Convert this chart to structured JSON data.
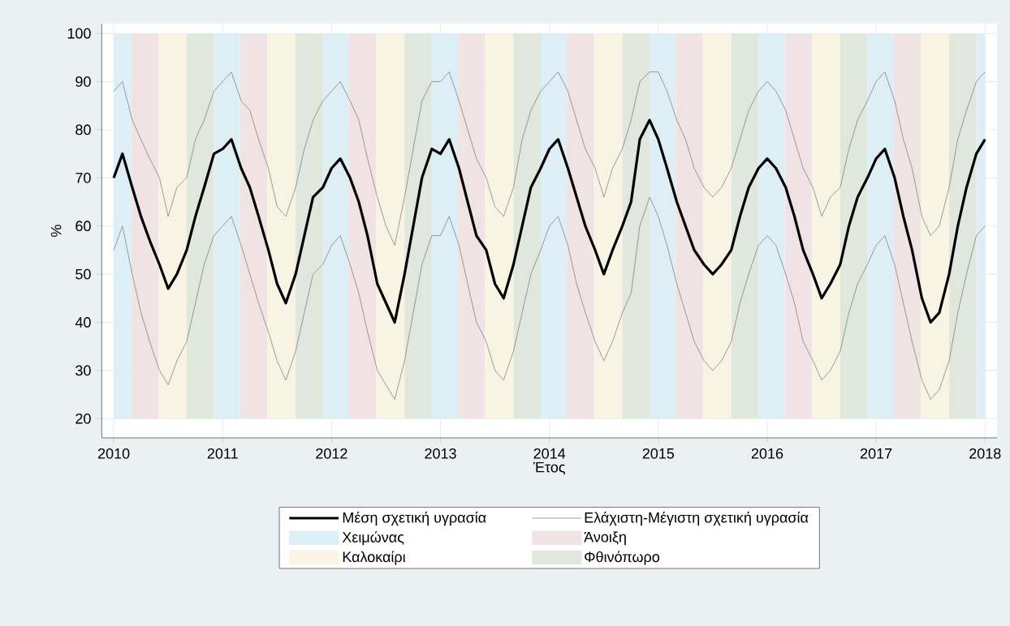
{
  "chart_data": {
    "type": "line",
    "xlabel": "Έτος",
    "ylabel": "%",
    "xlim": [
      2009.89,
      2018.11
    ],
    "ylim": [
      16,
      102
    ],
    "xticks": [
      2010,
      2011,
      2012,
      2013,
      2014,
      2015,
      2016,
      2017,
      2018
    ],
    "yticks": [
      20,
      30,
      40,
      50,
      60,
      70,
      80,
      90,
      100
    ],
    "grid": true,
    "legend": "bottom",
    "marker": "none",
    "line_style": "solid",
    "x": [
      2010,
      2010.08,
      2010.17,
      2010.25,
      2010.33,
      2010.42,
      2010.5,
      2010.58,
      2010.67,
      2010.75,
      2010.83,
      2010.92,
      2011,
      2011.08,
      2011.17,
      2011.25,
      2011.33,
      2011.42,
      2011.5,
      2011.58,
      2011.67,
      2011.75,
      2011.83,
      2011.92,
      2012,
      2012.08,
      2012.17,
      2012.25,
      2012.33,
      2012.42,
      2012.5,
      2012.58,
      2012.67,
      2012.75,
      2012.83,
      2012.92,
      2013,
      2013.08,
      2013.17,
      2013.25,
      2013.33,
      2013.42,
      2013.5,
      2013.58,
      2013.67,
      2013.75,
      2013.83,
      2013.92,
      2014,
      2014.08,
      2014.17,
      2014.25,
      2014.33,
      2014.42,
      2014.5,
      2014.58,
      2014.67,
      2014.75,
      2014.83,
      2014.92,
      2015,
      2015.08,
      2015.17,
      2015.25,
      2015.33,
      2015.42,
      2015.5,
      2015.58,
      2015.67,
      2015.75,
      2015.83,
      2015.92,
      2016,
      2016.08,
      2016.17,
      2016.25,
      2016.33,
      2016.42,
      2016.5,
      2016.58,
      2016.67,
      2016.75,
      2016.83,
      2016.92,
      2017,
      2017.08,
      2017.17,
      2017.25,
      2017.33,
      2017.42,
      2017.5,
      2017.58,
      2017.67,
      2017.75,
      2017.83,
      2017.92,
      2018
    ],
    "series": [
      {
        "name": "Μέση σχετική υγρασία",
        "color": "#000000",
        "values": [
          70,
          75,
          68,
          62,
          57,
          52,
          47,
          50,
          55,
          62,
          68,
          75,
          76,
          78,
          72,
          68,
          62,
          55,
          48,
          44,
          50,
          58,
          66,
          68,
          72,
          74,
          70,
          65,
          58,
          48,
          44,
          40,
          50,
          60,
          70,
          76,
          75,
          78,
          72,
          65,
          58,
          55,
          48,
          45,
          52,
          60,
          68,
          72,
          76,
          78,
          72,
          66,
          60,
          55,
          50,
          55,
          60,
          65,
          78,
          82,
          78,
          72,
          65,
          60,
          55,
          52,
          50,
          52,
          55,
          62,
          68,
          72,
          74,
          72,
          68,
          62,
          55,
          50,
          45,
          48,
          52,
          60,
          66,
          70,
          74,
          76,
          70,
          62,
          55,
          45,
          40,
          42,
          50,
          60,
          68,
          75,
          78
        ]
      },
      {
        "name": "Ελάχιστη-Μέγιστη σχετική υγρασία",
        "color": "#6e6e6e",
        "values": [
          88,
          90,
          82,
          78,
          74,
          70,
          62,
          68,
          70,
          78,
          82,
          88,
          90,
          92,
          86,
          84,
          78,
          72,
          64,
          62,
          68,
          76,
          82,
          86,
          88,
          90,
          86,
          82,
          74,
          66,
          60,
          56,
          66,
          76,
          86,
          90,
          90,
          92,
          86,
          80,
          74,
          70,
          64,
          62,
          68,
          78,
          84,
          88,
          90,
          92,
          88,
          82,
          76,
          72,
          66,
          72,
          76,
          82,
          90,
          92,
          92,
          88,
          82,
          78,
          72,
          68,
          66,
          68,
          72,
          78,
          84,
          88,
          90,
          88,
          84,
          78,
          72,
          68,
          62,
          66,
          68,
          76,
          82,
          86,
          90,
          92,
          86,
          78,
          72,
          62,
          58,
          60,
          68,
          78,
          84,
          90,
          92
        ]
      },
      {
        "color": "#6e6e6e",
        "values": [
          55,
          60,
          50,
          42,
          36,
          30,
          27,
          32,
          36,
          44,
          52,
          58,
          60,
          62,
          56,
          50,
          44,
          38,
          32,
          28,
          34,
          42,
          50,
          52,
          56,
          58,
          52,
          46,
          38,
          30,
          27,
          24,
          32,
          42,
          52,
          58,
          58,
          62,
          56,
          48,
          40,
          36,
          30,
          28,
          34,
          42,
          50,
          55,
          60,
          62,
          56,
          48,
          42,
          36,
          32,
          36,
          42,
          46,
          60,
          66,
          62,
          56,
          48,
          42,
          36,
          32,
          30,
          32,
          36,
          44,
          50,
          56,
          58,
          56,
          50,
          44,
          36,
          32,
          28,
          30,
          34,
          42,
          48,
          52,
          56,
          58,
          52,
          44,
          36,
          28,
          24,
          26,
          32,
          42,
          50,
          58,
          60
        ]
      }
    ],
    "bands": [
      {
        "axis": "x",
        "from": 2010.0,
        "to": 2010.16,
        "color": "#deeef5",
        "label": "Χειμώνας"
      },
      {
        "axis": "x",
        "from": 2010.16,
        "to": 2010.41,
        "color": "#f0e3e3",
        "label": "Άνοιξη"
      },
      {
        "axis": "x",
        "from": 2010.41,
        "to": 2010.67,
        "color": "#f8f3e3",
        "label": "Καλοκαίρι"
      },
      {
        "axis": "x",
        "from": 2010.67,
        "to": 2010.92,
        "color": "#e0e7dc",
        "label": "Φθινόπωρο"
      },
      {
        "axis": "x",
        "from": 2010.92,
        "to": 2011.16,
        "color": "#deeef5"
      },
      {
        "axis": "x",
        "from": 2011.16,
        "to": 2011.41,
        "color": "#f0e3e3"
      },
      {
        "axis": "x",
        "from": 2011.41,
        "to": 2011.67,
        "color": "#f8f3e3"
      },
      {
        "axis": "x",
        "from": 2011.67,
        "to": 2011.92,
        "color": "#e0e7dc"
      },
      {
        "axis": "x",
        "from": 2011.92,
        "to": 2012.16,
        "color": "#deeef5"
      },
      {
        "axis": "x",
        "from": 2012.16,
        "to": 2012.41,
        "color": "#f0e3e3"
      },
      {
        "axis": "x",
        "from": 2012.41,
        "to": 2012.67,
        "color": "#f8f3e3"
      },
      {
        "axis": "x",
        "from": 2012.67,
        "to": 2012.92,
        "color": "#e0e7dc"
      },
      {
        "axis": "x",
        "from": 2012.92,
        "to": 2013.16,
        "color": "#deeef5"
      },
      {
        "axis": "x",
        "from": 2013.16,
        "to": 2013.41,
        "color": "#f0e3e3"
      },
      {
        "axis": "x",
        "from": 2013.41,
        "to": 2013.67,
        "color": "#f8f3e3"
      },
      {
        "axis": "x",
        "from": 2013.67,
        "to": 2013.92,
        "color": "#e0e7dc"
      },
      {
        "axis": "x",
        "from": 2013.92,
        "to": 2014.16,
        "color": "#deeef5"
      },
      {
        "axis": "x",
        "from": 2014.16,
        "to": 2014.41,
        "color": "#f0e3e3"
      },
      {
        "axis": "x",
        "from": 2014.41,
        "to": 2014.67,
        "color": "#f8f3e3"
      },
      {
        "axis": "x",
        "from": 2014.67,
        "to": 2014.92,
        "color": "#e0e7dc"
      },
      {
        "axis": "x",
        "from": 2014.92,
        "to": 2015.16,
        "color": "#deeef5"
      },
      {
        "axis": "x",
        "from": 2015.16,
        "to": 2015.41,
        "color": "#f0e3e3"
      },
      {
        "axis": "x",
        "from": 2015.41,
        "to": 2015.67,
        "color": "#f8f3e3"
      },
      {
        "axis": "x",
        "from": 2015.67,
        "to": 2015.92,
        "color": "#e0e7dc"
      },
      {
        "axis": "x",
        "from": 2015.92,
        "to": 2016.16,
        "color": "#deeef5"
      },
      {
        "axis": "x",
        "from": 2016.16,
        "to": 2016.41,
        "color": "#f0e3e3"
      },
      {
        "axis": "x",
        "from": 2016.41,
        "to": 2016.67,
        "color": "#f8f3e3"
      },
      {
        "axis": "x",
        "from": 2016.67,
        "to": 2016.92,
        "color": "#e0e7dc"
      },
      {
        "axis": "x",
        "from": 2016.92,
        "to": 2017.16,
        "color": "#deeef5"
      },
      {
        "axis": "x",
        "from": 2017.16,
        "to": 2017.41,
        "color": "#f0e3e3"
      },
      {
        "axis": "x",
        "from": 2017.41,
        "to": 2017.67,
        "color": "#f8f3e3"
      },
      {
        "axis": "x",
        "from": 2017.67,
        "to": 2017.92,
        "color": "#e0e7dc"
      },
      {
        "axis": "x",
        "from": 2017.92,
        "to": 2018.0,
        "color": "#deeef5"
      }
    ]
  }
}
